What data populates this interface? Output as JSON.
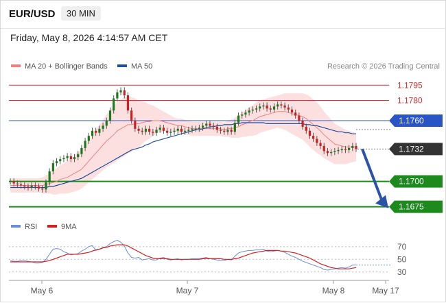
{
  "header": {
    "pair": "EUR/USD",
    "timeframe": "30 MIN",
    "datetime": "Friday, May 8, 2026 4:14:57 AM CET"
  },
  "legend": {
    "bollinger": "MA 20 + Bollinger Bands",
    "bollinger_color": "#f08080",
    "ma50": "MA 50",
    "ma50_color": "#1f4e9c",
    "research": "Research © 2026 Trading Central"
  },
  "rsi_legend": {
    "rsi": "RSI",
    "rsi_color": "#6b8fd6",
    "ma9": "9MA",
    "ma9_color": "#d42020"
  },
  "chart_data": {
    "type": "candlestick",
    "x_tick_labels": [
      "May 6",
      "May 7",
      "May 8",
      "May 17"
    ],
    "ylim": [
      1.1672,
      1.1804
    ],
    "levels": [
      {
        "value": 1.1795,
        "label": "1.1795",
        "color": "#e03030",
        "style": "line",
        "label_style": "text"
      },
      {
        "value": 1.178,
        "label": "1.1780",
        "color": "#e03030",
        "style": "line",
        "label_style": "text"
      },
      {
        "value": 1.176,
        "label": "1.1760",
        "color": "#2a55c7",
        "style": "line",
        "label_style": "tag"
      },
      {
        "value": 1.1732,
        "label": "1.1732",
        "color": "#333333",
        "style": "dotted",
        "label_style": "tag"
      },
      {
        "value": 1.17,
        "label": "1.1700",
        "color": "#1d8a1d",
        "style": "line",
        "label_style": "tag"
      },
      {
        "value": 1.1675,
        "label": "1.1675",
        "color": "#1d8a1d",
        "style": "line",
        "label_style": "tag"
      }
    ],
    "close": [
      1.17,
      1.1698,
      1.1697,
      1.1696,
      1.1695,
      1.1694,
      1.1696,
      1.1695,
      1.1693,
      1.1692,
      1.1699,
      1.171,
      1.1718,
      1.172,
      1.1722,
      1.1723,
      1.1725,
      1.1722,
      1.1724,
      1.1727,
      1.1733,
      1.174,
      1.1745,
      1.175,
      1.1748,
      1.1752,
      1.1755,
      1.176,
      1.177,
      1.1782,
      1.1788,
      1.179,
      1.1785,
      1.177,
      1.176,
      1.1752,
      1.175,
      1.1749,
      1.1752,
      1.1749,
      1.1748,
      1.1751,
      1.1753,
      1.175,
      1.1748,
      1.1749,
      1.175,
      1.1752,
      1.1749,
      1.175,
      1.1751,
      1.1752,
      1.1752,
      1.1753,
      1.1755,
      1.1757,
      1.1755,
      1.1754,
      1.1751,
      1.175,
      1.1749,
      1.1751,
      1.1749,
      1.1758,
      1.1765,
      1.1766,
      1.1768,
      1.177,
      1.1771,
      1.1772,
      1.1774,
      1.1775,
      1.1772,
      1.1771,
      1.1774,
      1.1776,
      1.1775,
      1.1773,
      1.1771,
      1.1768,
      1.1765,
      1.176,
      1.1754,
      1.175,
      1.1745,
      1.1742,
      1.1738,
      1.1735,
      1.173,
      1.1728,
      1.1729,
      1.173,
      1.1731,
      1.1732,
      1.1731,
      1.1733,
      1.1735,
      1.1732
    ],
    "ma20": [
      1.1696,
      1.1696,
      1.1696,
      1.1696,
      1.1696,
      1.1696,
      1.1696,
      1.1696,
      1.1696,
      1.1696,
      1.1697,
      1.1698,
      1.1699,
      1.17,
      1.1702,
      1.1703,
      1.1704,
      1.1706,
      1.1708,
      1.171,
      1.1712,
      1.1716,
      1.172,
      1.1724,
      1.1728,
      1.1732,
      1.1736,
      1.174,
      1.1743,
      1.1746,
      1.175,
      1.1752,
      1.1754,
      1.1756,
      1.1756,
      1.1757,
      1.1757,
      1.1758,
      1.1759,
      1.1759,
      1.176,
      1.176,
      1.176,
      1.1759,
      1.1758,
      1.1757,
      1.1756,
      1.1755,
      1.1755,
      1.1754,
      1.1753,
      1.1752,
      1.1752,
      1.1752,
      1.1752,
      1.1752,
      1.1752,
      1.1752,
      1.1752,
      1.1752,
      1.1751,
      1.1752,
      1.1752,
      1.1753,
      1.1754,
      1.1756,
      1.1757,
      1.1759,
      1.176,
      1.1762,
      1.1764,
      1.1765,
      1.1766,
      1.1767,
      1.1768,
      1.1769,
      1.1769,
      1.1769,
      1.1768,
      1.1767,
      1.1766,
      1.1765,
      1.1764,
      1.1762,
      1.1759,
      1.1756,
      1.1753,
      1.175,
      1.1746,
      1.1743,
      1.174,
      1.1737,
      1.1736,
      1.1735,
      1.1734,
      1.1734,
      1.1734,
      1.1734
    ],
    "bb_half_width": [
      0.0007,
      0.0007,
      0.0007,
      0.0007,
      0.0007,
      0.0007,
      0.0007,
      0.0007,
      0.0007,
      0.0008,
      0.0009,
      0.001,
      0.0012,
      0.0013,
      0.0014,
      0.0015,
      0.0016,
      0.0017,
      0.0018,
      0.0019,
      0.0019,
      0.002,
      0.0021,
      0.0022,
      0.0023,
      0.0024,
      0.0025,
      0.0026,
      0.0027,
      0.0028,
      0.0029,
      0.0029,
      0.0029,
      0.0028,
      0.0027,
      0.0025,
      0.0023,
      0.0021,
      0.0019,
      0.0017,
      0.0015,
      0.0013,
      0.0011,
      0.001,
      0.0009,
      0.0008,
      0.0007,
      0.0007,
      0.0007,
      0.0007,
      0.0007,
      0.0007,
      0.0007,
      0.0007,
      0.0007,
      0.0007,
      0.0007,
      0.0007,
      0.0007,
      0.0007,
      0.0007,
      0.0008,
      0.0009,
      0.001,
      0.0011,
      0.0012,
      0.0013,
      0.0014,
      0.0015,
      0.0016,
      0.0016,
      0.0016,
      0.0016,
      0.0016,
      0.0016,
      0.0016,
      0.0017,
      0.0018,
      0.0019,
      0.002,
      0.0021,
      0.0022,
      0.0023,
      0.0024,
      0.0025,
      0.0025,
      0.0025,
      0.0024,
      0.0023,
      0.0022,
      0.0021,
      0.002,
      0.0019,
      0.0018,
      0.0017,
      0.0016,
      0.0015,
      0.0014
    ],
    "ma50": [
      1.1694,
      1.1694,
      1.1694,
      1.1694,
      1.1694,
      1.1694,
      1.1694,
      1.1694,
      1.1694,
      1.1694,
      1.1694,
      1.1695,
      1.1695,
      1.1696,
      1.1697,
      1.1698,
      1.1699,
      1.17,
      1.1701,
      1.1702,
      1.1703,
      1.1705,
      1.1707,
      1.1709,
      1.1711,
      1.1713,
      1.1715,
      1.1717,
      1.1719,
      1.1721,
      1.1723,
      1.1725,
      1.1727,
      1.1729,
      1.1731,
      1.1732,
      1.1733,
      1.1734,
      1.1736,
      1.1737,
      1.1739,
      1.174,
      1.1741,
      1.1742,
      1.1743,
      1.1744,
      1.1745,
      1.1746,
      1.1747,
      1.1748,
      1.1749,
      1.175,
      1.1751,
      1.1751,
      1.1752,
      1.1753,
      1.1754,
      1.1754,
      1.1755,
      1.1755,
      1.1756,
      1.1756,
      1.1756,
      1.1757,
      1.1757,
      1.1758,
      1.1758,
      1.1758,
      1.1758,
      1.1758,
      1.1758,
      1.1758,
      1.1757,
      1.1757,
      1.1757,
      1.1757,
      1.1757,
      1.1757,
      1.1757,
      1.1757,
      1.1757,
      1.1757,
      1.1757,
      1.1756,
      1.1756,
      1.1755,
      1.1755,
      1.1754,
      1.1753,
      1.1752,
      1.1751,
      1.175,
      1.1749,
      1.1749,
      1.1748,
      1.1748,
      1.1747,
      1.1747
    ],
    "forecast_arrow": {
      "from": 1.1732,
      "to": 1.1675
    },
    "rsi_ticks": [
      70,
      50,
      30
    ],
    "rsi_ylim": [
      20,
      85
    ],
    "rsi": [
      48,
      47,
      47,
      48,
      48,
      47,
      46,
      44,
      44,
      45,
      50,
      58,
      66,
      67,
      66,
      62,
      60,
      57,
      58,
      59,
      63,
      66,
      70,
      72,
      64,
      66,
      69,
      70,
      75,
      78,
      80,
      77,
      71,
      60,
      53,
      52,
      53,
      49,
      50,
      51,
      49,
      49,
      52,
      53,
      50,
      49,
      50,
      51,
      49,
      50,
      50,
      51,
      51,
      51,
      52,
      53,
      51,
      50,
      49,
      48,
      48,
      50,
      49,
      55,
      60,
      62,
      63,
      64,
      64,
      65,
      65,
      66,
      63,
      62,
      63,
      64,
      63,
      61,
      58,
      55,
      53,
      50,
      47,
      45,
      43,
      41,
      39,
      37,
      34,
      33,
      34,
      35,
      36,
      37,
      36,
      38,
      41,
      41
    ],
    "rsi_ma9": [
      46,
      46,
      46,
      46,
      46,
      46,
      46,
      46,
      46,
      46,
      47,
      48,
      50,
      52,
      54,
      56,
      58,
      58,
      58,
      58,
      59,
      60,
      61,
      63,
      65,
      66,
      68,
      69,
      71,
      72,
      73,
      73,
      73,
      71,
      68,
      65,
      62,
      59,
      56,
      54,
      52,
      51,
      51,
      51,
      51,
      50,
      50,
      50,
      50,
      50,
      50,
      50,
      50,
      50,
      51,
      51,
      51,
      51,
      51,
      51,
      50,
      50,
      50,
      51,
      52,
      54,
      56,
      58,
      60,
      61,
      62,
      63,
      64,
      64,
      64,
      64,
      63,
      63,
      62,
      61,
      60,
      58,
      56,
      54,
      52,
      49,
      46,
      43,
      41,
      39,
      37,
      36,
      35,
      35,
      35,
      35,
      36,
      37
    ],
    "rsi_last": 41
  }
}
